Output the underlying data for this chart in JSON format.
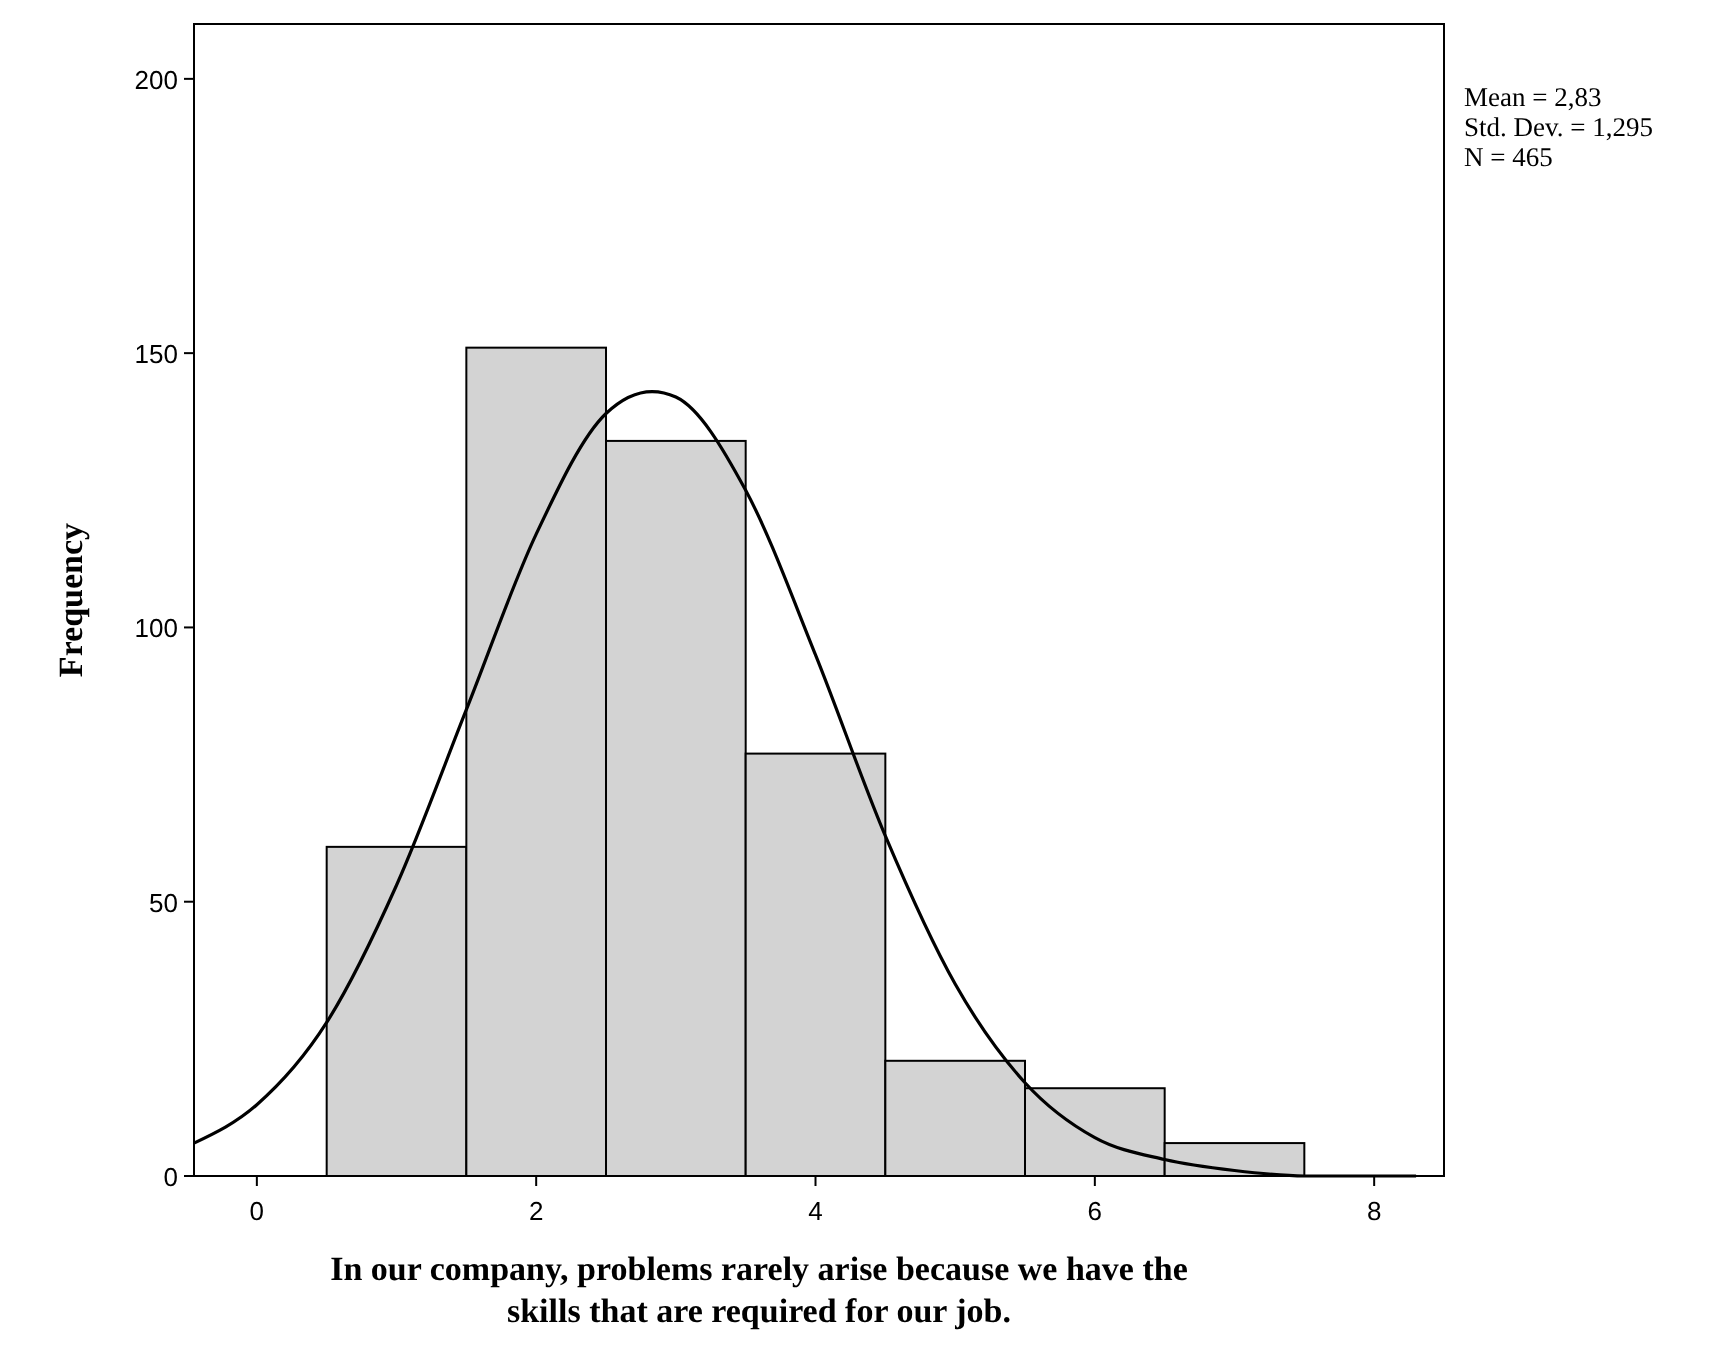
{
  "chart_data": {
    "type": "histogram",
    "xlabel": "In our company, problems rarely arise because we have the skills that are required for our job.",
    "ylabel": "Frequency",
    "bins": [
      0.5,
      1.5,
      2.5,
      3.5,
      4.5,
      5.5,
      6.5,
      7.5
    ],
    "values": [
      60,
      151,
      134,
      77,
      21,
      16,
      6
    ],
    "color": "#d3d3d3",
    "series": [
      {
        "type": "line",
        "color": "#000000",
        "x": [
          -0.45,
          0,
          0.5,
          1,
          1.5,
          2,
          2.5,
          2.83,
          3,
          3.5,
          4,
          4.5,
          5,
          5.5,
          6,
          6.5,
          7,
          7.5,
          8,
          8.3
        ],
        "values": [
          6,
          13,
          28,
          53,
          85,
          117,
          139,
          143,
          142,
          125,
          95,
          62,
          35,
          17,
          7,
          3,
          1,
          0,
          0,
          0
        ]
      }
    ],
    "xlim": [
      -0.45,
      8.5
    ],
    "ylim": [
      0,
      210
    ],
    "xticks": [
      0,
      2,
      4,
      6,
      8
    ],
    "yticks": [
      0,
      50,
      100,
      150,
      200
    ],
    "grid": false,
    "annotations": [
      "Mean = 2,83",
      "Std. Dev. = 1,295",
      "N = 465"
    ]
  }
}
